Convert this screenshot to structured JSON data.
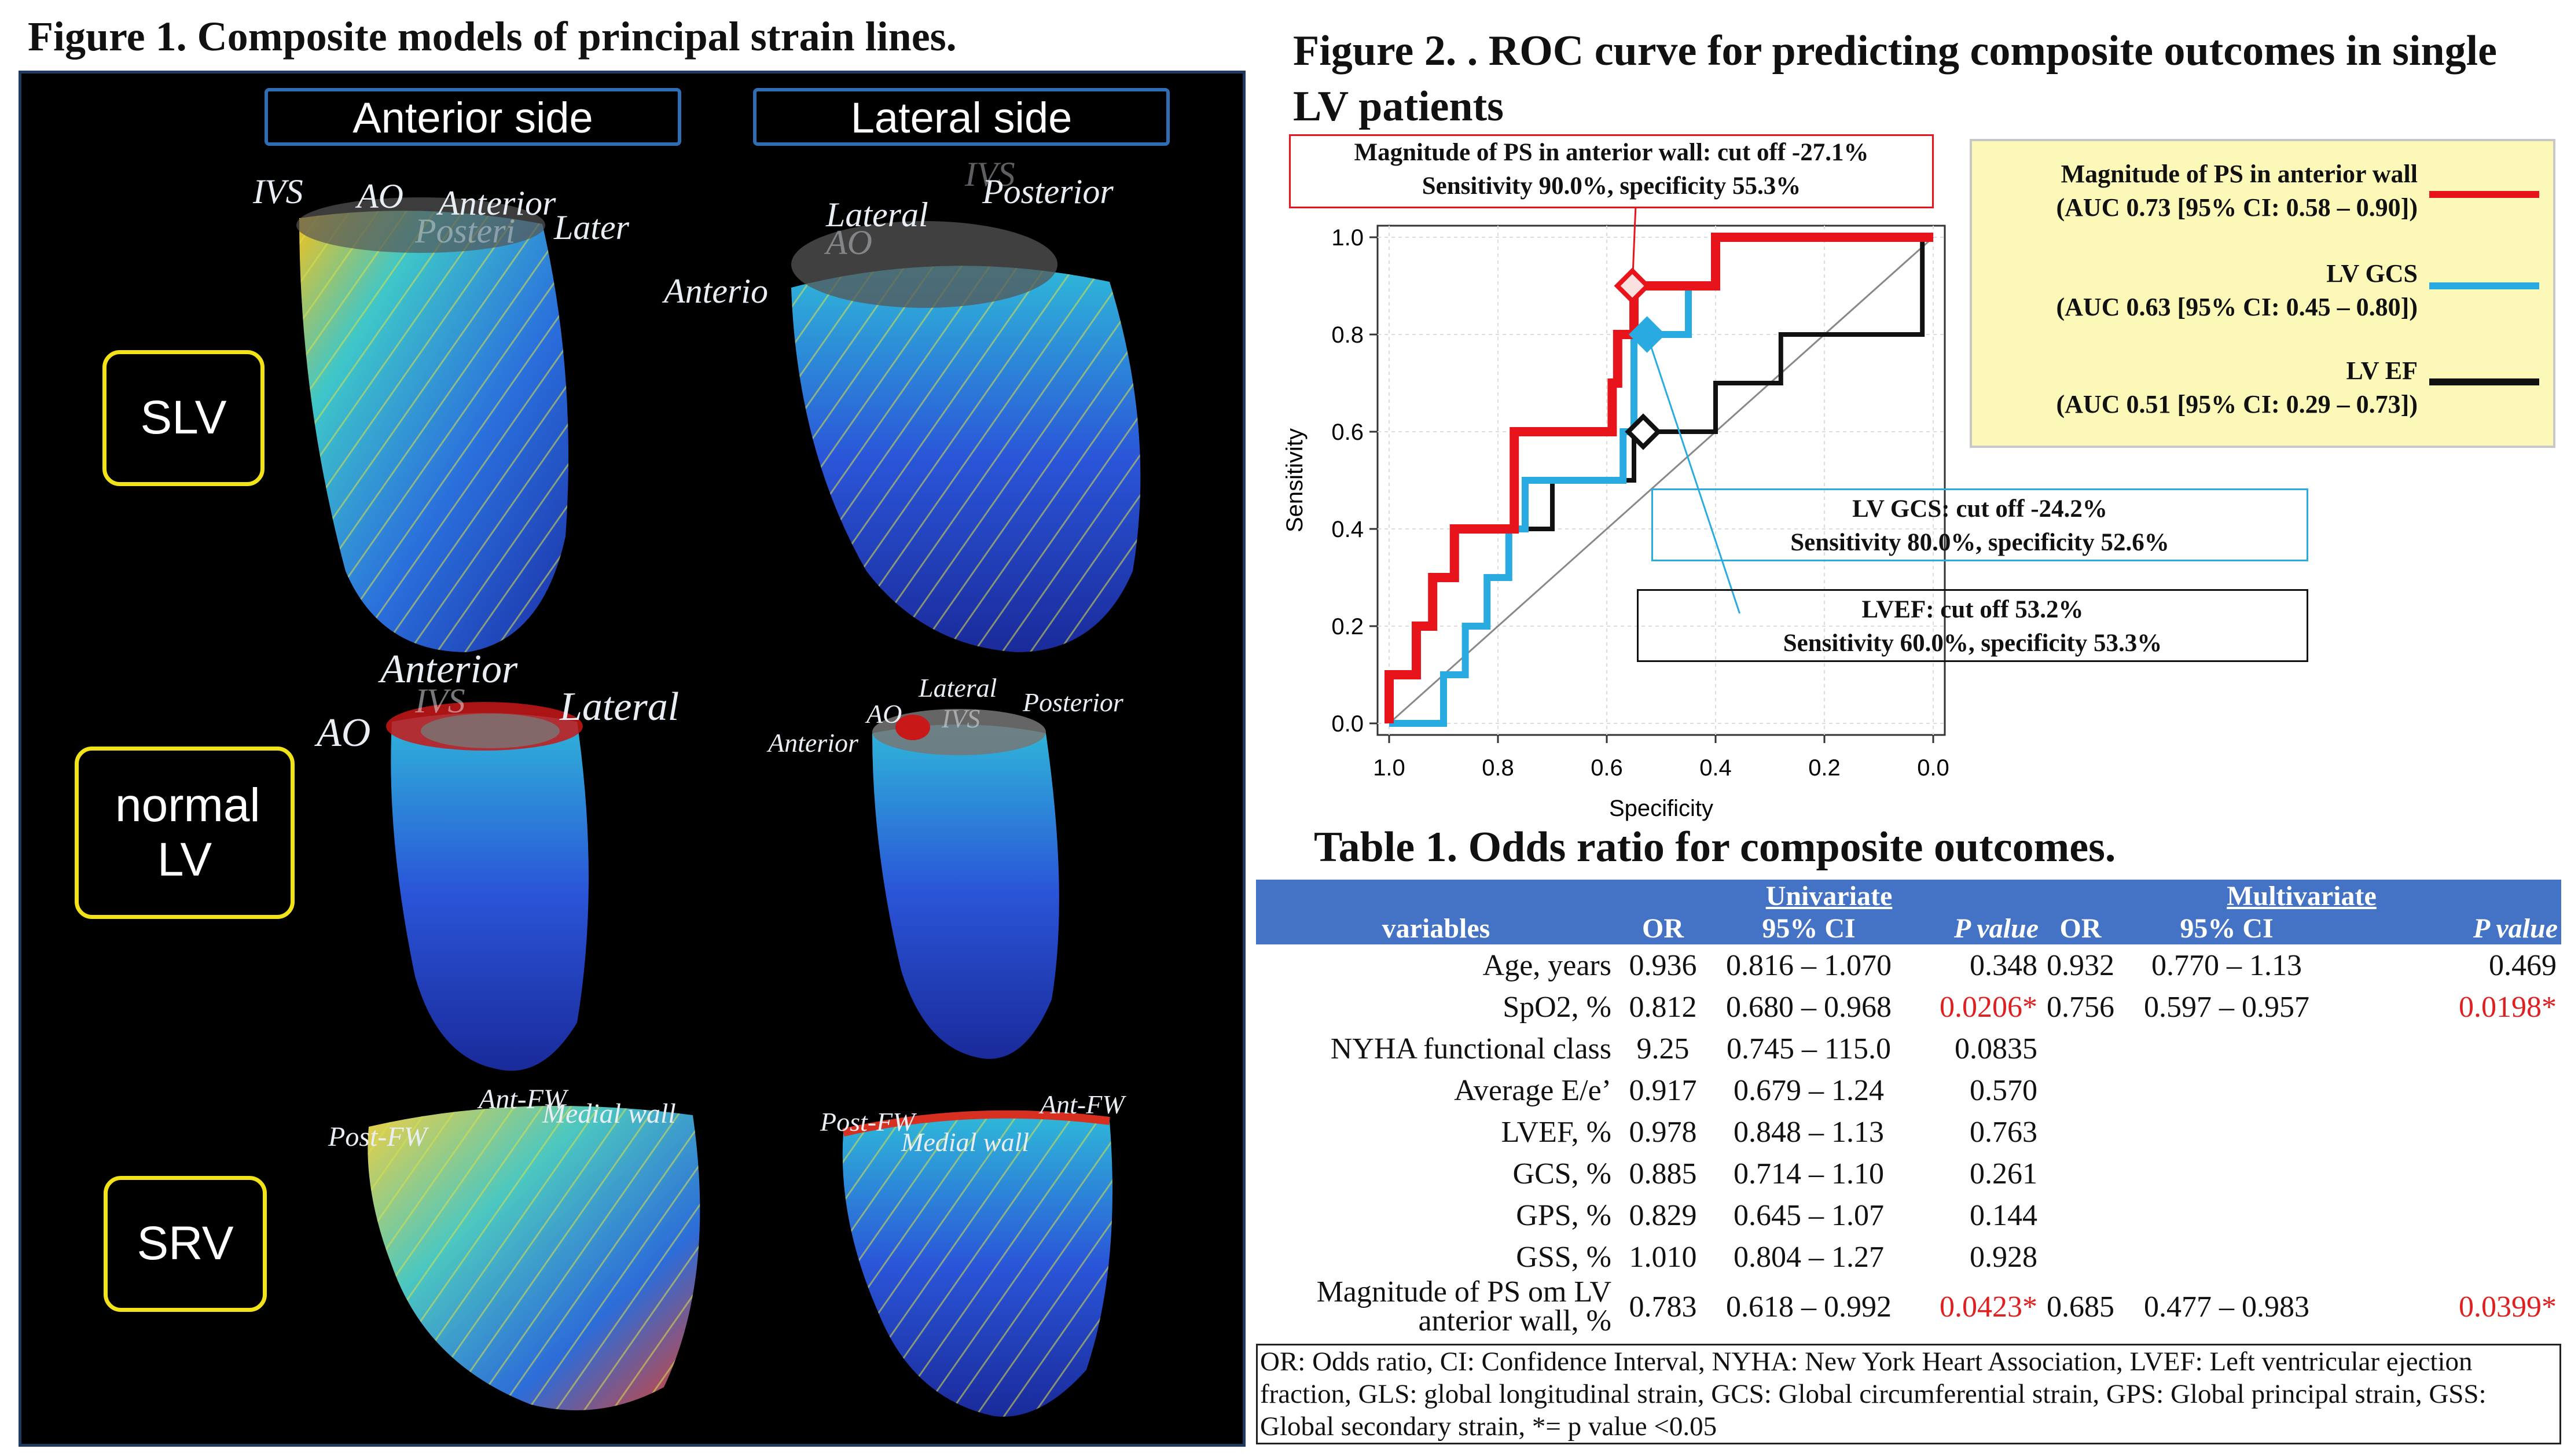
{
  "figure1": {
    "title": "Figure 1. Composite models of principal strain lines.",
    "side_headers": [
      "Anterior side",
      "Lateral side"
    ],
    "rows": [
      "SLV",
      "normal LV",
      "SRV"
    ],
    "labels": {
      "slv_ant": [
        "IVS",
        "AO",
        "Anterior",
        "Posteri",
        "Later"
      ],
      "slv_lat": [
        "Lateral",
        "Posterior",
        "IVS",
        "AO",
        "Anterio"
      ],
      "nlv_ant": [
        "Anterior",
        "IVS",
        "AO",
        "Lateral"
      ],
      "nlv_lat": [
        "Lateral",
        "AO",
        "IVS",
        "Posterior",
        "Anterior"
      ],
      "srv_ant": [
        "Ant-FW",
        "Medial wall",
        "Post-FW"
      ],
      "srv_lat": [
        "Ant-FW",
        "Post-FW",
        "Medial wall"
      ]
    }
  },
  "figure2": {
    "title": "Figure 2. .  ROC curve for predicting composite outcomes in single LV patients",
    "callouts": {
      "ps": [
        "Magnitude of PS in anterior wall: cut off -27.1%",
        "Sensitivity 90.0%, specificity 55.3%"
      ],
      "gcs": [
        "LV GCS: cut off -24.2%",
        "Sensitivity 80.0%, specificity 52.6%"
      ],
      "ef": [
        "LVEF: cut off 53.2%",
        "Sensitivity 60.0%, specificity 53.3%"
      ]
    },
    "legend": [
      {
        "name": "Magnitude of PS in anterior wall",
        "auc": "(AUC 0.73 [95% CI: 0.58 – 0.90])",
        "color": "#e8141c"
      },
      {
        "name": "LV GCS",
        "auc": "(AUC 0.63 [95% CI: 0.45 – 0.80])",
        "color": "#29abe2"
      },
      {
        "name": "LV EF",
        "auc": "(AUC 0.51 [95% CI: 0.29 – 0.73])",
        "color": "#111111"
      }
    ]
  },
  "chart_data": {
    "type": "line",
    "xlabel": "Specificity",
    "ylabel": "Sensitivity",
    "xlim": [
      1.0,
      0.0
    ],
    "ylim": [
      0.0,
      1.0
    ],
    "x_ticks": [
      "1.0",
      "0.8",
      "0.6",
      "0.4",
      "0.2",
      "0.0"
    ],
    "y_ticks": [
      "0.0",
      "0.2",
      "0.4",
      "0.6",
      "0.8",
      "1.0"
    ],
    "grid": true,
    "series": [
      {
        "name": "Magnitude of PS in anterior wall",
        "color": "#e8141c",
        "x": [
          1.0,
          1.0,
          0.95,
          0.95,
          0.92,
          0.92,
          0.88,
          0.88,
          0.77,
          0.77,
          0.59,
          0.59,
          0.58,
          0.58,
          0.55,
          0.55,
          0.4,
          0.4,
          0.0
        ],
        "y": [
          0.0,
          0.1,
          0.1,
          0.2,
          0.2,
          0.3,
          0.3,
          0.4,
          0.4,
          0.6,
          0.6,
          0.7,
          0.7,
          0.8,
          0.8,
          0.9,
          0.9,
          1.0,
          1.0
        ]
      },
      {
        "name": "LV GCS",
        "color": "#29abe2",
        "x": [
          1.0,
          0.9,
          0.9,
          0.86,
          0.86,
          0.82,
          0.82,
          0.78,
          0.78,
          0.75,
          0.75,
          0.57,
          0.57,
          0.55,
          0.55,
          0.45,
          0.45,
          0.4,
          0.4,
          0.22,
          0.22,
          0.0
        ],
        "y": [
          0.0,
          0.0,
          0.1,
          0.1,
          0.2,
          0.2,
          0.3,
          0.3,
          0.4,
          0.4,
          0.5,
          0.5,
          0.6,
          0.6,
          0.8,
          0.8,
          0.9,
          0.9,
          1.0,
          1.0,
          1.0,
          1.0
        ]
      },
      {
        "name": "LV EF",
        "color": "#111111",
        "x": [
          1.0,
          0.9,
          0.9,
          0.86,
          0.86,
          0.82,
          0.82,
          0.78,
          0.78,
          0.7,
          0.7,
          0.55,
          0.55,
          0.4,
          0.4,
          0.28,
          0.28,
          0.2,
          0.2,
          0.02,
          0.02,
          0.0
        ],
        "y": [
          0.0,
          0.0,
          0.1,
          0.1,
          0.2,
          0.2,
          0.3,
          0.3,
          0.4,
          0.4,
          0.5,
          0.5,
          0.6,
          0.6,
          0.7,
          0.7,
          0.8,
          0.8,
          0.8,
          0.8,
          1.0,
          1.0
        ]
      }
    ],
    "cutoff_points": [
      {
        "series": "Magnitude of PS in anterior wall",
        "x": 0.553,
        "y": 0.9
      },
      {
        "series": "LV GCS",
        "x": 0.526,
        "y": 0.8
      },
      {
        "series": "LV EF",
        "x": 0.533,
        "y": 0.6
      }
    ]
  },
  "table1": {
    "title": "Table 1. Odds ratio for composite outcomes.",
    "group_headers": [
      "Univariate",
      "Multivariate"
    ],
    "columns": [
      "variables",
      "OR",
      "95% CI",
      "P value",
      "OR",
      "95% CI",
      "P value"
    ],
    "rows": [
      {
        "variable": "Age, years",
        "or1": "0.936",
        "ci1": "0.816 – 1.070",
        "p1": "0.348",
        "or2": "0.932",
        "ci2": "0.770 – 1.13",
        "p2": "0.469"
      },
      {
        "variable": "SpO2, %",
        "or1": "0.812",
        "ci1": "0.680 – 0.968",
        "p1": "0.0206*",
        "or2": "0.756",
        "ci2": "0.597 – 0.957",
        "p2": "0.0198*"
      },
      {
        "variable": "NYHA functional class",
        "or1": "9.25",
        "ci1": "0.745 – 115.0",
        "p1": "0.0835",
        "or2": "",
        "ci2": "",
        "p2": ""
      },
      {
        "variable": "Average E/e’",
        "or1": "0.917",
        "ci1": "0.679 – 1.24",
        "p1": "0.570",
        "or2": "",
        "ci2": "",
        "p2": ""
      },
      {
        "variable": "LVEF, %",
        "or1": "0.978",
        "ci1": "0.848 – 1.13",
        "p1": "0.763",
        "or2": "",
        "ci2": "",
        "p2": ""
      },
      {
        "variable": "GCS, %",
        "or1": "0.885",
        "ci1": "0.714 – 1.10",
        "p1": "0.261",
        "or2": "",
        "ci2": "",
        "p2": ""
      },
      {
        "variable": "GPS, %",
        "or1": "0.829",
        "ci1": "0.645 – 1.07",
        "p1": "0.144",
        "or2": "",
        "ci2": "",
        "p2": ""
      },
      {
        "variable": "GSS, %",
        "or1": "1.010",
        "ci1": "0.804 – 1.27",
        "p1": "0.928",
        "or2": "",
        "ci2": "",
        "p2": ""
      },
      {
        "variable": "Magnitude of PS om LV anterior wall, %",
        "or1": "0.783",
        "ci1": "0.618 – 0.992",
        "p1": "0.0423*",
        "or2": "0.685",
        "ci2": "0.477 – 0.983",
        "p2": "0.0399*"
      }
    ],
    "footnote": "OR: Odds ratio, CI: Confidence Interval, NYHA: New York Heart Association, LVEF: Left ventricular ejection fraction, GLS: global longitudinal strain, GCS: Global circumferential strain, GPS: Global principal strain, GSS: Global secondary strain, *= p value <0.05"
  }
}
